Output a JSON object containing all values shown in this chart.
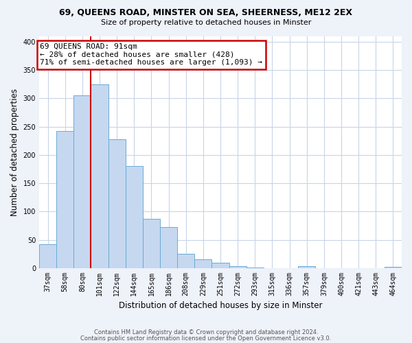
{
  "title": "69, QUEENS ROAD, MINSTER ON SEA, SHEERNESS, ME12 2EX",
  "subtitle": "Size of property relative to detached houses in Minster",
  "xlabel": "Distribution of detached houses by size in Minster",
  "ylabel": "Number of detached properties",
  "bar_labels": [
    "37sqm",
    "58sqm",
    "80sqm",
    "101sqm",
    "122sqm",
    "144sqm",
    "165sqm",
    "186sqm",
    "208sqm",
    "229sqm",
    "251sqm",
    "272sqm",
    "293sqm",
    "315sqm",
    "336sqm",
    "357sqm",
    "379sqm",
    "400sqm",
    "421sqm",
    "443sqm",
    "464sqm"
  ],
  "bar_values": [
    42,
    242,
    305,
    325,
    228,
    180,
    87,
    73,
    26,
    16,
    10,
    4,
    1,
    0,
    0,
    4,
    0,
    0,
    0,
    0,
    3
  ],
  "bar_color": "#c5d8f0",
  "bar_edge_color": "#6aaad4",
  "vline_color": "#cc0000",
  "annotation_text_line1": "69 QUEENS ROAD: 91sqm",
  "annotation_text_line2": "← 28% of detached houses are smaller (428)",
  "annotation_text_line3": "71% of semi-detached houses are larger (1,093) →",
  "annotation_box_color": "white",
  "annotation_box_edge": "#cc0000",
  "ylim": [
    0,
    410
  ],
  "yticks": [
    0,
    50,
    100,
    150,
    200,
    250,
    300,
    350,
    400
  ],
  "footer1": "Contains HM Land Registry data © Crown copyright and database right 2024.",
  "footer2": "Contains public sector information licensed under the Open Government Licence v3.0.",
  "bg_color": "#eef2f9",
  "plot_bg_color": "#ffffff",
  "grid_color": "#c8d4e8"
}
